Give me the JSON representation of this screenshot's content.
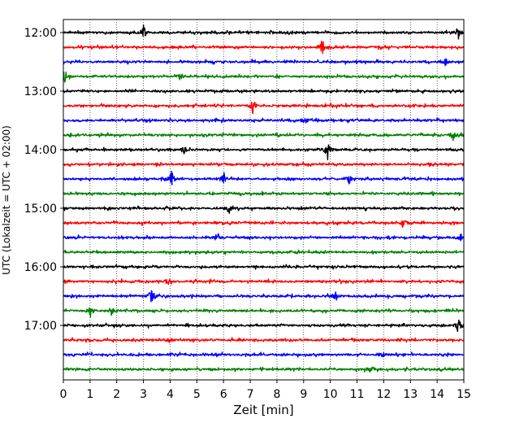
{
  "chart_data": {
    "type": "line",
    "title": "",
    "xlabel": "Zeit  [min]",
    "ylabel": "UTC (Lokalzeit = UTC + 02:00)",
    "xlim": [
      0,
      15
    ],
    "x_ticks": [
      "0",
      "1",
      "2",
      "3",
      "4",
      "5",
      "6",
      "7",
      "8",
      "9",
      "10",
      "11",
      "12",
      "13",
      "14",
      "15"
    ],
    "y_tick_labels": [
      "12:00",
      "13:00",
      "14:00",
      "15:00",
      "16:00",
      "17:00"
    ],
    "grid": "vertical dotted lines at each minute",
    "trace_colors": [
      "#000000",
      "#ff0000",
      "#0000ff",
      "#008000"
    ],
    "traces": [
      {
        "start": "12:00",
        "events": [
          [
            3.0,
            1.0
          ],
          [
            14.8,
            0.9
          ]
        ]
      },
      {
        "start": "12:15",
        "events": [
          [
            9.7,
            1.2
          ]
        ]
      },
      {
        "start": "12:30",
        "events": [
          [
            14.3,
            0.6
          ]
        ]
      },
      {
        "start": "12:45",
        "events": [
          [
            0.05,
            1.0
          ],
          [
            4.4,
            0.7
          ]
        ]
      },
      {
        "start": "13:00",
        "events": []
      },
      {
        "start": "13:15",
        "events": [
          [
            7.1,
            1.0
          ]
        ]
      },
      {
        "start": "13:30",
        "events": [
          [
            9.05,
            0.6
          ]
        ]
      },
      {
        "start": "13:45",
        "events": [
          [
            14.6,
            0.8
          ]
        ]
      },
      {
        "start": "14:00",
        "events": [
          [
            4.5,
            0.6
          ],
          [
            9.9,
            1.4
          ]
        ]
      },
      {
        "start": "14:15",
        "events": []
      },
      {
        "start": "14:30",
        "events": [
          [
            4.05,
            1.0
          ],
          [
            6.0,
            0.8
          ],
          [
            10.7,
            0.6
          ]
        ]
      },
      {
        "start": "14:45",
        "events": []
      },
      {
        "start": "15:00",
        "events": [
          [
            6.25,
            1.0
          ]
        ]
      },
      {
        "start": "15:15",
        "events": [
          [
            12.7,
            0.5
          ]
        ]
      },
      {
        "start": "15:30",
        "events": [
          [
            5.8,
            0.5
          ],
          [
            14.9,
            0.5
          ]
        ]
      },
      {
        "start": "15:45",
        "events": []
      },
      {
        "start": "16:00",
        "events": []
      },
      {
        "start": "16:15",
        "events": [
          [
            3.9,
            0.5
          ]
        ]
      },
      {
        "start": "16:30",
        "events": [
          [
            3.3,
            1.2
          ],
          [
            10.2,
            0.5
          ]
        ]
      },
      {
        "start": "16:45",
        "events": [
          [
            1.0,
            1.0
          ],
          [
            1.8,
            0.5
          ]
        ]
      },
      {
        "start": "17:00",
        "events": [
          [
            14.8,
            1.2
          ]
        ]
      },
      {
        "start": "17:15",
        "events": [
          [
            4.0,
            0.5
          ]
        ]
      },
      {
        "start": "17:30",
        "events": [
          [
            12.0,
            0.4
          ]
        ]
      },
      {
        "start": "17:45",
        "events": [
          [
            11.5,
            0.4
          ]
        ]
      }
    ]
  }
}
